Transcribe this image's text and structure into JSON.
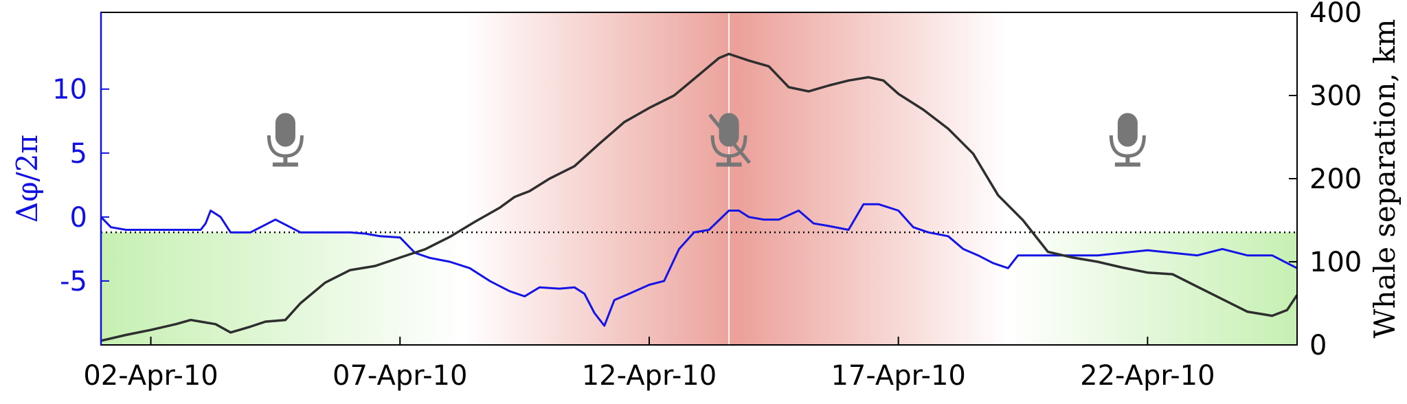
{
  "chart_data": {
    "type": "line",
    "x_ticks": [
      "02-Apr-10",
      "07-Apr-10",
      "12-Apr-10",
      "17-Apr-10",
      "22-Apr-10"
    ],
    "x_tick_days": [
      2,
      7,
      12,
      17,
      22
    ],
    "xlim_days": [
      1,
      25
    ],
    "y_left": {
      "label": "Δφ/2π",
      "ticks": [
        "10",
        "5",
        "0",
        "-5"
      ],
      "tick_values": [
        10,
        5,
        0,
        -5
      ],
      "lim": [
        -10,
        16
      ],
      "color": "#1010e0"
    },
    "y_right": {
      "label": "Whale separation, km",
      "ticks": [
        "0",
        "100",
        "200",
        "300",
        "400"
      ],
      "tick_values": [
        0,
        100,
        200,
        300,
        400
      ],
      "lim": [
        0,
        400
      ],
      "color": "#333333"
    },
    "reference_line_left": -1.2,
    "marker_day": 13.6,
    "shaded_regions": [
      {
        "kind": "green",
        "from_day": 1,
        "to_day": 8.3,
        "fade": "right",
        "color": "#c6f0b2"
      },
      {
        "kind": "red",
        "from_day": 8.3,
        "to_day": 19.2,
        "peak_day": 13.6,
        "color": "#e89088"
      },
      {
        "kind": "green",
        "from_day": 19.2,
        "to_day": 25,
        "fade": "left",
        "color": "#c6f0b2"
      }
    ],
    "icons": [
      {
        "name": "microphone",
        "day": 4.7,
        "muted": false
      },
      {
        "name": "microphone-muted",
        "day": 13.6,
        "muted": true
      },
      {
        "name": "microphone",
        "day": 21.6,
        "muted": false
      }
    ],
    "series": [
      {
        "axis": "left",
        "color": "#1414e6",
        "x": [
          1,
          1.2,
          1.5,
          2,
          2.5,
          2.8,
          3,
          3.1,
          3.2,
          3.4,
          3.6,
          4,
          4.5,
          5,
          5.5,
          6,
          6.3,
          6.6,
          7,
          7.3,
          7.6,
          8,
          8.4,
          8.8,
          9.2,
          9.5,
          9.8,
          10.2,
          10.5,
          10.7,
          10.9,
          11.1,
          11.3,
          11.6,
          12,
          12.3,
          12.6,
          12.9,
          13.2,
          13.6,
          13.8,
          14,
          14.3,
          14.6,
          15,
          15.3,
          15.6,
          16,
          16.3,
          16.6,
          17,
          17.3,
          17.6,
          18,
          18.3,
          18.6,
          18.9,
          19.2,
          19.4,
          19.6,
          20,
          21,
          22,
          23,
          23.5,
          24,
          24.5,
          25
        ],
        "y": [
          0,
          -0.8,
          -1,
          -1,
          -1,
          -1,
          -1,
          -0.5,
          0.5,
          0,
          -1.2,
          -1.2,
          -0.2,
          -1.2,
          -1.2,
          -1.2,
          -1.3,
          -1.5,
          -1.6,
          -2.8,
          -3.2,
          -3.5,
          -4,
          -5,
          -5.8,
          -6.2,
          -5.5,
          -5.6,
          -5.5,
          -6,
          -7.5,
          -8.5,
          -6.5,
          -6,
          -5.3,
          -5,
          -2.5,
          -1.2,
          -1,
          0.5,
          0.5,
          0,
          -0.2,
          -0.2,
          0.5,
          -0.5,
          -0.7,
          -1,
          1,
          1,
          0.5,
          -0.8,
          -1.2,
          -1.5,
          -2.5,
          -3,
          -3.6,
          -4,
          -3,
          -3,
          -3,
          -3,
          -2.6,
          -3,
          -2.5,
          -3,
          -3,
          -4
        ]
      },
      {
        "axis": "right",
        "color": "#2e2e2e",
        "x": [
          1,
          1.5,
          2,
          2.5,
          2.8,
          3,
          3.3,
          3.6,
          4,
          4.3,
          4.7,
          5,
          5.5,
          6,
          6.5,
          7,
          7.5,
          8,
          8.5,
          9,
          9.3,
          9.6,
          10,
          10.5,
          11,
          11.5,
          12,
          12.5,
          12.8,
          13.1,
          13.4,
          13.6,
          14,
          14.4,
          14.8,
          15.2,
          15.6,
          16,
          16.4,
          16.7,
          17,
          17.5,
          18,
          18.5,
          19,
          19.5,
          20,
          20.5,
          21,
          21.5,
          22,
          22.5,
          23,
          23.5,
          24,
          24.5,
          24.8,
          25
        ],
        "y": [
          5,
          12,
          18,
          25,
          30,
          28,
          25,
          15,
          22,
          28,
          30,
          50,
          75,
          90,
          95,
          105,
          115,
          130,
          148,
          165,
          178,
          185,
          200,
          215,
          242,
          268,
          285,
          300,
          315,
          330,
          345,
          350,
          342,
          335,
          310,
          305,
          312,
          318,
          322,
          318,
          302,
          283,
          260,
          230,
          180,
          150,
          112,
          105,
          100,
          93,
          87,
          85,
          70,
          55,
          40,
          35,
          42,
          60
        ]
      }
    ]
  }
}
